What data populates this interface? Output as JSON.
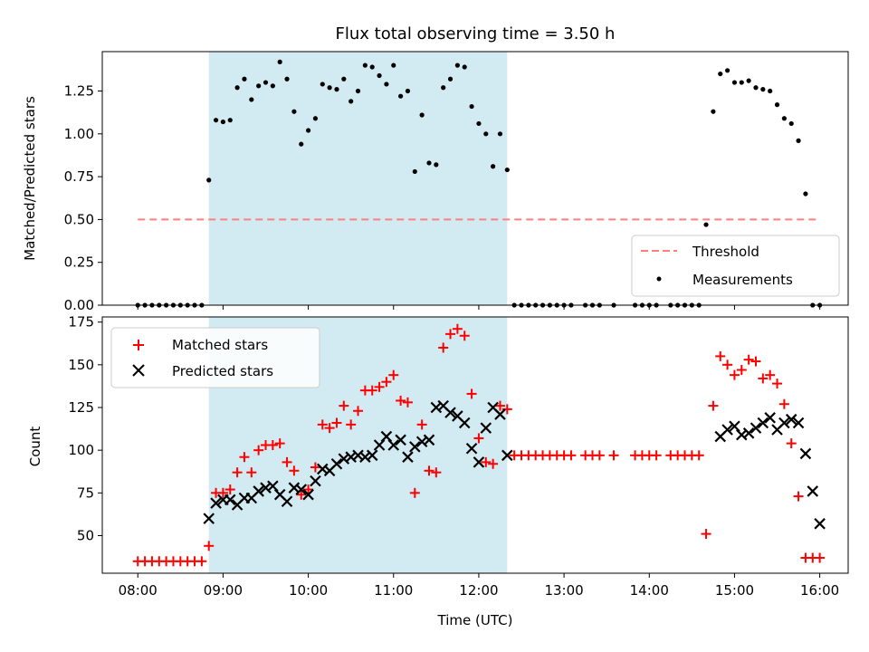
{
  "chart_data": [
    {
      "type": "scatter",
      "title": "Flux total observing time = 3.50 h",
      "ylabel": "Matched/Predicted stars",
      "xlabel": "",
      "xlim": [
        "07:35",
        "16:20"
      ],
      "ylim": [
        0,
        1.48
      ],
      "x_ticks": [
        "08:00",
        "09:00",
        "10:00",
        "11:00",
        "12:00",
        "13:00",
        "14:00",
        "15:00",
        "16:00"
      ],
      "y_ticks": [
        0.0,
        0.25,
        0.5,
        0.75,
        1.0,
        1.25
      ],
      "y_tick_labels": [
        "0.00",
        "0.25",
        "0.50",
        "0.75",
        "1.00",
        "1.25"
      ],
      "shaded_span": {
        "x_start": "08:50",
        "x_end": "12:20",
        "color": "#add8e6"
      },
      "legend_position": "lower-right",
      "series": [
        {
          "name": "Threshold",
          "kind": "line",
          "style": "dashed",
          "color": "#ff7f7f",
          "x": [
            "08:00",
            "16:00"
          ],
          "y": [
            0.5,
            0.5
          ]
        },
        {
          "name": "Measurements",
          "kind": "points",
          "color": "#000000",
          "x": [
            "08:00",
            "08:05",
            "08:10",
            "08:15",
            "08:20",
            "08:25",
            "08:30",
            "08:35",
            "08:40",
            "08:45",
            "08:50",
            "08:55",
            "09:00",
            "09:05",
            "09:10",
            "09:15",
            "09:20",
            "09:25",
            "09:30",
            "09:35",
            "09:40",
            "09:45",
            "09:50",
            "09:55",
            "10:00",
            "10:05",
            "10:10",
            "10:15",
            "10:20",
            "10:25",
            "10:30",
            "10:35",
            "10:40",
            "10:45",
            "10:50",
            "10:55",
            "11:00",
            "11:05",
            "11:10",
            "11:15",
            "11:20",
            "11:25",
            "11:30",
            "11:35",
            "11:40",
            "11:45",
            "11:50",
            "11:55",
            "12:00",
            "12:05",
            "12:10",
            "12:15",
            "12:20",
            "12:25",
            "12:30",
            "12:35",
            "12:40",
            "12:45",
            "12:50",
            "12:55",
            "13:00",
            "13:05",
            "13:15",
            "13:20",
            "13:25",
            "13:35",
            "13:50",
            "13:55",
            "14:00",
            "14:05",
            "14:15",
            "14:20",
            "14:25",
            "14:30",
            "14:35",
            "14:40",
            "14:45",
            "14:50",
            "14:55",
            "15:00",
            "15:05",
            "15:10",
            "15:15",
            "15:20",
            "15:25",
            "15:30",
            "15:35",
            "15:40",
            "15:45",
            "15:50",
            "15:55",
            "16:00"
          ],
          "y": [
            0,
            0,
            0,
            0,
            0,
            0,
            0,
            0,
            0,
            0,
            0.73,
            1.08,
            1.07,
            1.08,
            1.27,
            1.32,
            1.2,
            1.28,
            1.3,
            1.28,
            1.42,
            1.32,
            1.13,
            0.94,
            1.02,
            1.09,
            1.29,
            1.27,
            1.26,
            1.32,
            1.19,
            1.25,
            1.4,
            1.39,
            1.34,
            1.29,
            1.4,
            1.22,
            1.25,
            0.78,
            1.11,
            0.83,
            0.82,
            1.27,
            1.32,
            1.4,
            1.39,
            1.16,
            1.06,
            1.0,
            0.81,
            1.0,
            0.79,
            0,
            0,
            0,
            0,
            0,
            0,
            0,
            0,
            0,
            0,
            0,
            0,
            0,
            0,
            0,
            0,
            0,
            0,
            0,
            0,
            0,
            0,
            0.47,
            1.13,
            1.35,
            1.37,
            1.3,
            1.3,
            1.31,
            1.27,
            1.26,
            1.25,
            1.17,
            1.09,
            1.06,
            0.96,
            0.65,
            0,
            0
          ]
        }
      ]
    },
    {
      "type": "scatter",
      "title": "",
      "ylabel": "Count",
      "xlabel": "Time (UTC)",
      "xlim": [
        "07:35",
        "16:20"
      ],
      "ylim": [
        28,
        178
      ],
      "x_ticks": [
        "08:00",
        "09:00",
        "10:00",
        "11:00",
        "12:00",
        "13:00",
        "14:00",
        "15:00",
        "16:00"
      ],
      "y_ticks": [
        50,
        75,
        100,
        125,
        150,
        175
      ],
      "shaded_span": {
        "x_start": "08:50",
        "x_end": "12:20",
        "color": "#add8e6"
      },
      "legend_position": "upper-left",
      "series": [
        {
          "name": "Matched stars",
          "marker": "plus",
          "color": "#ff0000",
          "x": [
            "08:00",
            "08:05",
            "08:10",
            "08:15",
            "08:20",
            "08:25",
            "08:30",
            "08:35",
            "08:40",
            "08:45",
            "08:50",
            "08:55",
            "09:00",
            "09:05",
            "09:10",
            "09:15",
            "09:20",
            "09:25",
            "09:30",
            "09:35",
            "09:40",
            "09:45",
            "09:50",
            "09:55",
            "10:00",
            "10:05",
            "10:10",
            "10:15",
            "10:20",
            "10:25",
            "10:30",
            "10:35",
            "10:40",
            "10:45",
            "10:50",
            "10:55",
            "11:00",
            "11:05",
            "11:10",
            "11:15",
            "11:20",
            "11:25",
            "11:30",
            "11:35",
            "11:40",
            "11:45",
            "11:50",
            "11:55",
            "12:00",
            "12:05",
            "12:10",
            "12:15",
            "12:20",
            "12:25",
            "12:30",
            "12:35",
            "12:40",
            "12:45",
            "12:50",
            "12:55",
            "13:00",
            "13:05",
            "13:15",
            "13:20",
            "13:25",
            "13:35",
            "13:50",
            "13:55",
            "14:00",
            "14:05",
            "14:15",
            "14:20",
            "14:25",
            "14:30",
            "14:35",
            "14:40",
            "14:45",
            "14:50",
            "14:55",
            "15:00",
            "15:05",
            "15:10",
            "15:15",
            "15:20",
            "15:25",
            "15:30",
            "15:35",
            "15:40",
            "15:45",
            "15:50",
            "15:55",
            "16:00"
          ],
          "y": [
            35,
            35,
            35,
            35,
            35,
            35,
            35,
            35,
            35,
            35,
            44,
            75,
            75,
            77,
            87,
            96,
            87,
            100,
            103,
            103,
            104,
            93,
            88,
            74,
            77,
            90,
            115,
            113,
            116,
            126,
            115,
            123,
            135,
            135,
            137,
            140,
            144,
            129,
            128,
            75,
            115,
            88,
            87,
            160,
            168,
            171,
            167,
            133,
            107,
            93,
            92,
            126,
            124,
            97,
            97,
            97,
            97,
            97,
            97,
            97,
            97,
            97,
            97,
            97,
            97,
            97,
            97,
            97,
            97,
            97,
            97,
            97,
            97,
            97,
            97,
            51,
            126,
            155,
            150,
            144,
            147,
            153,
            152,
            142,
            144,
            139,
            127,
            104,
            73,
            37,
            37,
            37
          ]
        },
        {
          "name": "Predicted stars",
          "marker": "x",
          "color": "#000000",
          "x": [
            "08:50",
            "08:55",
            "09:00",
            "09:05",
            "09:10",
            "09:15",
            "09:20",
            "09:25",
            "09:30",
            "09:35",
            "09:40",
            "09:45",
            "09:50",
            "09:55",
            "10:00",
            "10:05",
            "10:10",
            "10:15",
            "10:20",
            "10:25",
            "10:30",
            "10:35",
            "10:40",
            "10:45",
            "10:50",
            "10:55",
            "11:00",
            "11:05",
            "11:10",
            "11:15",
            "11:20",
            "11:25",
            "11:30",
            "11:35",
            "11:40",
            "11:45",
            "11:50",
            "11:55",
            "12:00",
            "12:05",
            "12:10",
            "12:15",
            "12:20",
            "14:50",
            "14:55",
            "15:00",
            "15:05",
            "15:10",
            "15:15",
            "15:20",
            "15:25",
            "15:30",
            "15:35",
            "15:40",
            "15:45",
            "15:50",
            "15:55",
            "16:00"
          ],
          "y": [
            60,
            69,
            71,
            71,
            68,
            72,
            72,
            76,
            78,
            79,
            74,
            70,
            78,
            77,
            74,
            82,
            89,
            88,
            92,
            95,
            96,
            97,
            96,
            97,
            103,
            108,
            103,
            106,
            96,
            102,
            105,
            106,
            125,
            126,
            122,
            120,
            116,
            101,
            93,
            113,
            125,
            121,
            97,
            108,
            112,
            114,
            109,
            110,
            113,
            116,
            119,
            112,
            116,
            118,
            116,
            98,
            76,
            57
          ]
        }
      ]
    }
  ]
}
